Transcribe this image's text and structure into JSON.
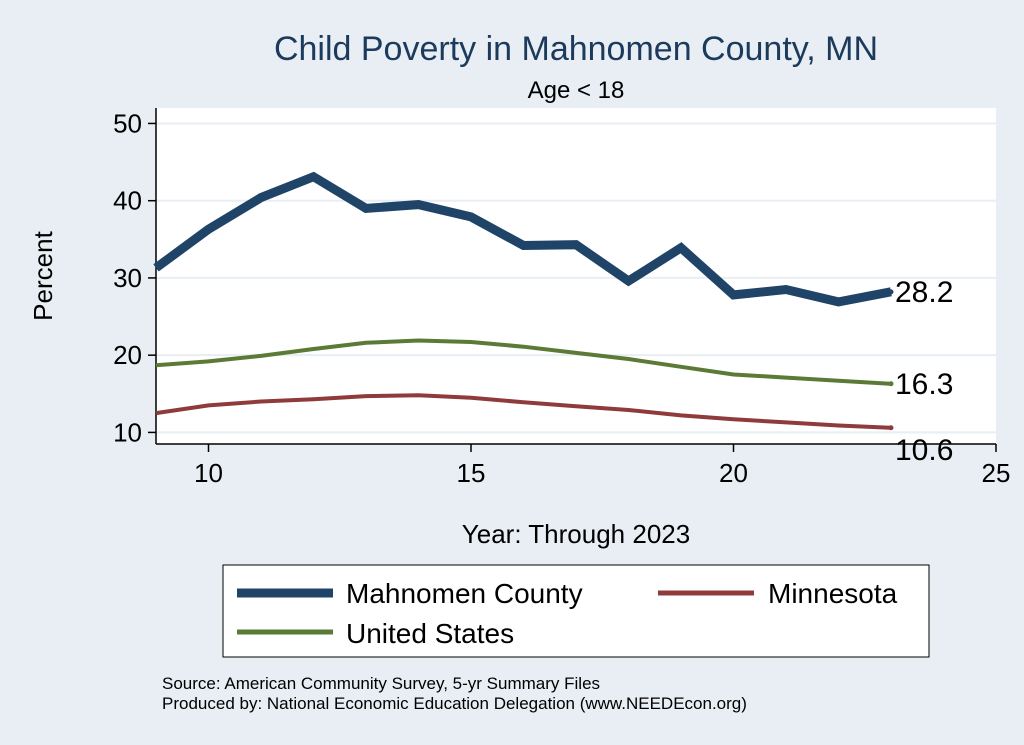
{
  "chart_data": {
    "type": "line",
    "title": "Child Poverty in Mahnomen County, MN",
    "subtitle": "Age < 18",
    "xlabel": "Year: Through 2023",
    "ylabel": "Percent",
    "xlim": [
      9,
      25
    ],
    "ylim": [
      8.5,
      52
    ],
    "xticks": [
      10,
      15,
      20,
      25
    ],
    "yticks": [
      10,
      20,
      30,
      40,
      50
    ],
    "grid": true,
    "legend_position": "bottom",
    "x": [
      9,
      10,
      11,
      12,
      13,
      14,
      15,
      16,
      17,
      18,
      19,
      20,
      21,
      22,
      23
    ],
    "series": [
      {
        "name": "Mahnomen County",
        "color": "#1f4468",
        "width": 9,
        "values": [
          31.3,
          36.3,
          40.4,
          43.1,
          39.0,
          39.5,
          37.9,
          34.2,
          34.3,
          29.6,
          33.9,
          27.8,
          28.5,
          26.9,
          28.2
        ],
        "end_label": "28.2"
      },
      {
        "name": "Minnesota",
        "color": "#8f3b3b",
        "width": 4,
        "values": [
          12.5,
          13.5,
          14.0,
          14.3,
          14.7,
          14.8,
          14.5,
          13.9,
          13.4,
          12.9,
          12.2,
          11.7,
          11.3,
          10.9,
          10.6
        ],
        "end_label": "10.6"
      },
      {
        "name": "United States",
        "color": "#5a7a35",
        "width": 4,
        "values": [
          18.7,
          19.2,
          19.9,
          20.8,
          21.6,
          21.9,
          21.7,
          21.1,
          20.3,
          19.5,
          18.5,
          17.5,
          17.1,
          16.7,
          16.3
        ],
        "end_label": "16.3"
      }
    ],
    "notes": [
      "Source: American Community Survey, 5-yr Summary Files",
      "Produced by: National Economic Education Delegation (www.NEEDEcon.org)"
    ]
  }
}
